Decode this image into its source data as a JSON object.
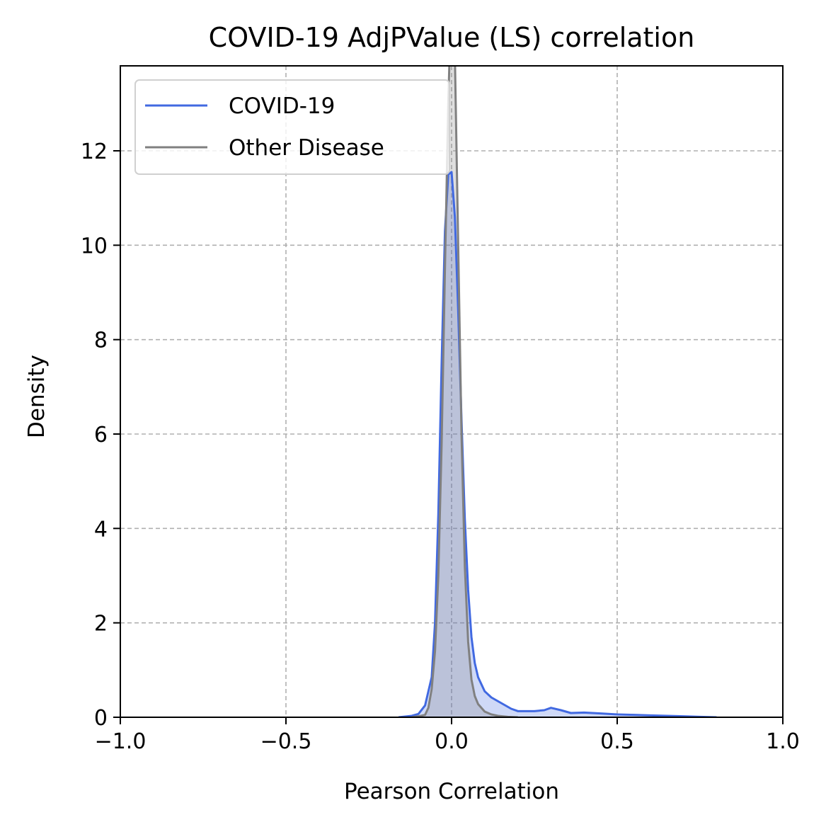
{
  "chart_data": {
    "type": "area",
    "title": "COVID-19 AdjPValue (LS) correlation",
    "xlabel": "Pearson Correlation",
    "ylabel": "Density",
    "xlim": [
      -1.0,
      1.0
    ],
    "ylim": [
      0,
      13.8
    ],
    "xticks": [
      -1.0,
      -0.5,
      0.0,
      0.5,
      1.0
    ],
    "xtick_labels": [
      "−1.0",
      "−0.5",
      "0.0",
      "0.5",
      "1.0"
    ],
    "yticks": [
      0,
      2,
      4,
      6,
      8,
      10,
      12
    ],
    "ytick_labels": [
      "0",
      "2",
      "4",
      "6",
      "8",
      "10",
      "12"
    ],
    "grid": true,
    "legend_position": "top-left",
    "series": [
      {
        "name": "COVID-19",
        "color": "#4169e1",
        "fill": "#4169e1",
        "x": [
          -0.16,
          -0.12,
          -0.1,
          -0.08,
          -0.06,
          -0.05,
          -0.04,
          -0.03,
          -0.02,
          -0.01,
          0.0,
          0.01,
          0.02,
          0.03,
          0.04,
          0.05,
          0.06,
          0.07,
          0.08,
          0.1,
          0.12,
          0.15,
          0.18,
          0.2,
          0.22,
          0.25,
          0.28,
          0.3,
          0.33,
          0.36,
          0.4,
          0.45,
          0.5,
          0.55,
          0.6,
          0.65,
          0.7,
          0.75,
          0.8
        ],
        "y": [
          0.0,
          0.03,
          0.07,
          0.25,
          0.85,
          2.0,
          4.3,
          7.5,
          10.3,
          11.5,
          11.55,
          10.6,
          8.6,
          6.3,
          4.2,
          2.7,
          1.7,
          1.15,
          0.85,
          0.55,
          0.42,
          0.3,
          0.18,
          0.13,
          0.13,
          0.13,
          0.15,
          0.2,
          0.15,
          0.09,
          0.1,
          0.08,
          0.06,
          0.05,
          0.04,
          0.03,
          0.02,
          0.01,
          0.0
        ]
      },
      {
        "name": "Other Disease",
        "color": "#808080",
        "fill": "#808080",
        "x": [
          -0.12,
          -0.1,
          -0.08,
          -0.07,
          -0.06,
          -0.05,
          -0.04,
          -0.03,
          -0.02,
          -0.01,
          0.0,
          0.01,
          0.02,
          0.03,
          0.04,
          0.05,
          0.06,
          0.07,
          0.08,
          0.1,
          0.12,
          0.14,
          0.17,
          0.2
        ],
        "y": [
          0.0,
          0.02,
          0.05,
          0.2,
          0.6,
          1.4,
          3.0,
          5.8,
          9.5,
          13.0,
          15.5,
          14.0,
          10.0,
          6.0,
          3.2,
          1.6,
          0.8,
          0.45,
          0.28,
          0.12,
          0.06,
          0.03,
          0.01,
          0.0
        ]
      }
    ]
  }
}
